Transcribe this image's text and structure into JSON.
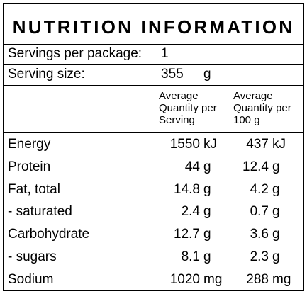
{
  "title": "NUTRITION INFORMATION",
  "servings_per_package": {
    "label": "Servings per package:",
    "value": "1"
  },
  "serving_size": {
    "label": "Serving size:",
    "value": "355",
    "unit": "g"
  },
  "columns": {
    "per_serving": "Average Quantity per Serving",
    "per_100g": "Average Quantity per 100 g"
  },
  "rows": [
    {
      "name": "Energy",
      "serving": "1550",
      "serving_unit": "kJ",
      "per100": "437",
      "per100_unit": "kJ"
    },
    {
      "name": "Protein",
      "serving": "44",
      "serving_unit": "g",
      "per100": "12.4",
      "per100_unit": "g"
    },
    {
      "name": "Fat, total",
      "serving": "14.8",
      "serving_unit": "g",
      "per100": "4.2",
      "per100_unit": "g"
    },
    {
      "name": "- saturated",
      "serving": "2.4",
      "serving_unit": "g",
      "per100": "0.7",
      "per100_unit": "g"
    },
    {
      "name": "Carbohydrate",
      "serving": "12.7",
      "serving_unit": "g",
      "per100": "3.6",
      "per100_unit": "g"
    },
    {
      "name": "- sugars",
      "serving": "8.1",
      "serving_unit": "g",
      "per100": "2.3",
      "per100_unit": "g"
    },
    {
      "name": "Sodium",
      "serving": "1020",
      "serving_unit": "mg",
      "per100": "288",
      "per100_unit": "mg"
    }
  ]
}
